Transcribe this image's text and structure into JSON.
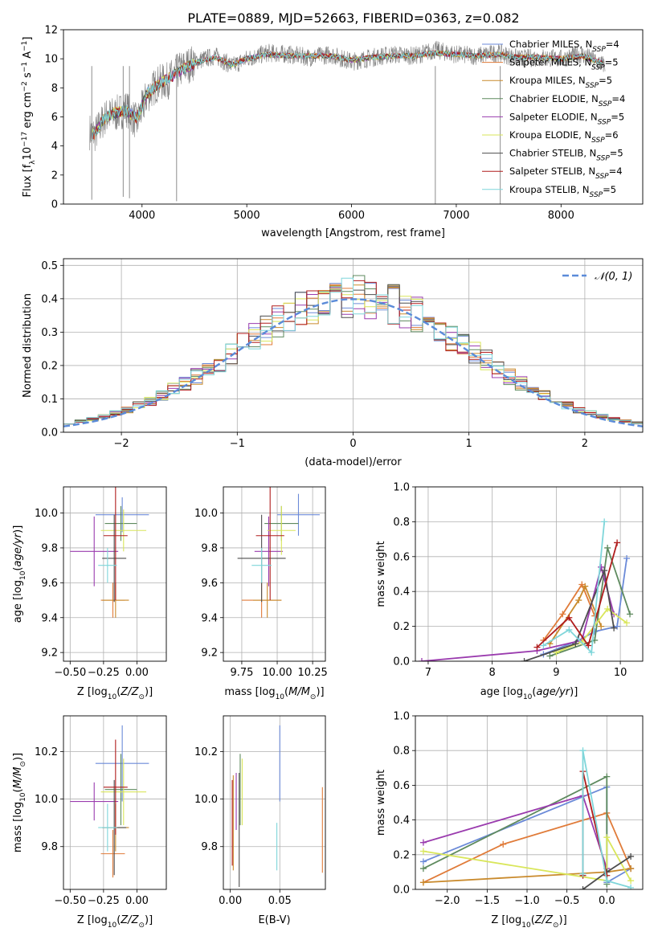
{
  "figure": {
    "title": "PLATE=0889, MJD=52663, FIBERID=0363, z=0.082"
  },
  "models": [
    {
      "name": "Chabrier MILES",
      "nssp": "4",
      "color": "#6B8AD8"
    },
    {
      "name": "Salpeter MILES",
      "nssp": "5",
      "color": "#E07B39"
    },
    {
      "name": "Kroupa MILES",
      "nssp": "5",
      "color": "#C98A2C"
    },
    {
      "name": "Chabrier ELODIE",
      "nssp": "4",
      "color": "#5E8A5E"
    },
    {
      "name": "Salpeter ELODIE",
      "nssp": "5",
      "color": "#9A3BAE"
    },
    {
      "name": "Kroupa ELODIE",
      "nssp": "6",
      "color": "#D9E65A"
    },
    {
      "name": "Chabrier STELIB",
      "nssp": "5",
      "color": "#4D4D4D"
    },
    {
      "name": "Salpeter STELIB",
      "nssp": "4",
      "color": "#B01C1C"
    },
    {
      "name": "Kroupa STELIB",
      "nssp": "5",
      "color": "#7FD6DA"
    }
  ],
  "chart_data": [
    {
      "id": "spectrum",
      "type": "line",
      "title": "PLATE=0889, MJD=52663, FIBERID=0363, z=0.082",
      "xlabel": "wavelength [Angstrom, rest frame]",
      "ylabel": "Flux [f",
      "ylabel_parts": [
        "Flux [f",
        "λ",
        "10",
        "−17",
        " erg cm",
        "−2",
        " s",
        "−1",
        " A",
        "−1",
        "]"
      ],
      "xlim": [
        3250,
        8780
      ],
      "ylim": [
        0,
        12
      ],
      "xticks": [
        4000,
        5000,
        6000,
        7000,
        8000
      ],
      "yticks": [
        0,
        2,
        4,
        6,
        8,
        10,
        12
      ],
      "grid": false,
      "legend": "right",
      "data_color": "#808080",
      "data_x": [
        3500,
        3550,
        3650,
        3750,
        3850,
        3950,
        4050,
        4150,
        4250,
        4350,
        4500,
        4700,
        4860,
        5000,
        5200,
        5400,
        5600,
        5800,
        6000,
        6200,
        6400,
        6600,
        6800,
        7000,
        7200,
        7400,
        7600,
        7800,
        8000,
        8200,
        8400
      ],
      "data_y": [
        5.0,
        4.8,
        6.0,
        6.2,
        6.6,
        5.6,
        7.5,
        8.3,
        8.5,
        9.2,
        9.8,
        10.2,
        9.5,
        10.0,
        10.4,
        10.3,
        10.1,
        10.3,
        9.8,
        10.1,
        10.3,
        10.2,
        10.6,
        10.3,
        10.2,
        10.4,
        10.0,
        10.1,
        10.0,
        10.3,
        9.6
      ],
      "model_y": [
        4.6,
        4.9,
        6.0,
        6.3,
        6.4,
        5.9,
        7.6,
        8.2,
        8.6,
        9.1,
        9.7,
        10.1,
        9.6,
        10.0,
        10.3,
        10.2,
        10.2,
        10.2,
        9.9,
        10.1,
        10.2,
        10.2,
        10.4,
        10.3,
        10.2,
        10.3,
        10.1,
        10.1,
        10.0,
        10.2,
        9.7
      ]
    },
    {
      "id": "residuals",
      "type": "step",
      "xlabel": "(data-model)/error",
      "ylabel": "Normed distribution",
      "xlim": [
        -2.5,
        2.5
      ],
      "ylim": [
        0,
        0.52
      ],
      "xticks": [
        -2,
        -1,
        0,
        1,
        2
      ],
      "yticks": [
        0.0,
        0.1,
        0.2,
        0.3,
        0.4,
        0.5
      ],
      "grid": true,
      "legend": "top-right",
      "normal_label": "𝒩(0, 1)",
      "normal_color": "#5B8BD9",
      "bin_width": 0.1,
      "bin_start": -2.5
    },
    {
      "id": "z-age",
      "type": "errorbar",
      "xlabel": "Z [log10(Z/Z⊙)]",
      "ylabel": "age [log10(age/yr)]",
      "xlim": [
        -0.55,
        0.22
      ],
      "ylim": [
        9.15,
        10.15
      ],
      "xticks": [
        -0.5,
        -0.25,
        0.0
      ],
      "yticks": [
        9.2,
        9.4,
        9.6,
        9.8,
        10.0
      ],
      "grid": true,
      "points": [
        {
          "x": -0.11,
          "xerr": 0.2,
          "y": 9.99,
          "yerr": 0.1
        },
        {
          "x": -0.18,
          "xerr": 0.09,
          "y": 9.5,
          "yerr": 0.1
        },
        {
          "x": -0.16,
          "xerr": 0.1,
          "y": 9.5,
          "yerr": 0.1
        },
        {
          "x": -0.12,
          "xerr": 0.12,
          "y": 9.94,
          "yerr": 0.1
        },
        {
          "x": -0.32,
          "xerr": 0.18,
          "y": 9.78,
          "yerr": 0.2
        },
        {
          "x": -0.1,
          "xerr": 0.17,
          "y": 9.9,
          "yerr": 0.12
        },
        {
          "x": -0.17,
          "xerr": 0.09,
          "y": 9.74,
          "yerr": 0.25
        },
        {
          "x": -0.16,
          "xerr": 0.09,
          "y": 9.87,
          "yerr": 0.37
        },
        {
          "x": -0.22,
          "xerr": 0.07,
          "y": 9.7,
          "yerr": 0.1
        }
      ]
    },
    {
      "id": "mass-age",
      "type": "errorbar",
      "xlabel": "mass [log10(M/M⊙)]",
      "ylabel": "",
      "xlim": [
        9.62,
        10.34
      ],
      "ylim": [
        9.15,
        10.15
      ],
      "xticks": [
        9.75,
        10.0,
        10.25
      ],
      "yticks": [
        9.2,
        9.4,
        9.6,
        9.8,
        10.0
      ],
      "grid": true,
      "points": [
        {
          "x": 10.15,
          "xerr": 0.15,
          "y": 9.99,
          "yerr": 0.12
        },
        {
          "x": 9.89,
          "xerr": 0.14,
          "y": 9.5,
          "yerr": 0.1
        },
        {
          "x": 9.93,
          "xerr": 0.1,
          "y": 9.5,
          "yerr": 0.1
        },
        {
          "x": 10.03,
          "xerr": 0.12,
          "y": 9.94,
          "yerr": 0.1
        },
        {
          "x": 9.94,
          "xerr": 0.1,
          "y": 9.78,
          "yerr": 0.2
        },
        {
          "x": 10.03,
          "xerr": 0.1,
          "y": 9.9,
          "yerr": 0.14
        },
        {
          "x": 9.89,
          "xerr": 0.17,
          "y": 9.74,
          "yerr": 0.25
        },
        {
          "x": 9.95,
          "xerr": 0.1,
          "y": 9.87,
          "yerr": 0.37
        },
        {
          "x": 9.89,
          "xerr": 0.07,
          "y": 9.7,
          "yerr": 0.1
        }
      ]
    },
    {
      "id": "age-weight",
      "type": "line",
      "xlabel": "age [log10(age/yr)]",
      "ylabel": "mass weight",
      "xlim": [
        6.8,
        10.35
      ],
      "ylim": [
        0,
        1.0
      ],
      "xticks": [
        7,
        8,
        9,
        10
      ],
      "yticks": [
        0.0,
        0.2,
        0.4,
        0.6,
        0.8,
        1.0
      ],
      "grid": true,
      "series": [
        {
          "x": [
            8.8,
            9.35,
            9.6,
            9.95,
            10.1
          ],
          "y": [
            0.04,
            0.12,
            0.17,
            0.2,
            0.59
          ]
        },
        {
          "x": [
            8.8,
            9.1,
            9.4,
            9.6
          ],
          "y": [
            0.12,
            0.27,
            0.44,
            0.26
          ]
        },
        {
          "x": [
            8.9,
            9.35,
            9.45,
            9.7
          ],
          "y": [
            0.1,
            0.35,
            0.43,
            0.2
          ]
        },
        {
          "x": [
            8.9,
            9.6,
            9.8,
            10.15
          ],
          "y": [
            0.03,
            0.12,
            0.65,
            0.27
          ]
        },
        {
          "x": [
            6.9,
            8.7,
            9.4,
            9.7,
            9.9
          ],
          "y": [
            0.0,
            0.06,
            0.12,
            0.54,
            0.27
          ]
        },
        {
          "x": [
            9.0,
            9.4,
            9.8,
            10.1
          ],
          "y": [
            0.05,
            0.11,
            0.3,
            0.22
          ]
        },
        {
          "x": [
            8.5,
            9.3,
            9.75,
            9.9
          ],
          "y": [
            0.0,
            0.1,
            0.52,
            0.19
          ]
        },
        {
          "x": [
            8.7,
            9.2,
            9.5,
            9.95
          ],
          "y": [
            0.08,
            0.25,
            0.09,
            0.68
          ]
        },
        {
          "x": [
            8.8,
            9.2,
            9.55,
            9.75
          ],
          "y": [
            0.09,
            0.18,
            0.05,
            0.8
          ]
        }
      ]
    },
    {
      "id": "z-mass",
      "type": "errorbar",
      "xlabel": "Z [log10(Z/Z⊙)]",
      "ylabel": "mass [log10(M/M⊙)]",
      "xlim": [
        -0.55,
        0.22
      ],
      "ylim": [
        9.62,
        10.35
      ],
      "xticks": [
        -0.5,
        -0.25,
        0.0
      ],
      "yticks": [
        9.8,
        10.0,
        10.2
      ],
      "grid": true,
      "points": [
        {
          "x": -0.11,
          "xerr": 0.2,
          "y": 10.15,
          "yerr": 0.16
        },
        {
          "x": -0.18,
          "xerr": 0.09,
          "y": 9.77,
          "yerr": 0.1
        },
        {
          "x": -0.16,
          "xerr": 0.1,
          "y": 9.88,
          "yerr": 0.1
        },
        {
          "x": -0.12,
          "xerr": 0.12,
          "y": 10.04,
          "yerr": 0.15
        },
        {
          "x": -0.32,
          "xerr": 0.18,
          "y": 9.99,
          "yerr": 0.08
        },
        {
          "x": -0.1,
          "xerr": 0.17,
          "y": 10.03,
          "yerr": 0.14
        },
        {
          "x": -0.17,
          "xerr": 0.09,
          "y": 9.88,
          "yerr": 0.2
        },
        {
          "x": -0.16,
          "xerr": 0.09,
          "y": 10.05,
          "yerr": 0.2
        },
        {
          "x": -0.22,
          "xerr": 0.07,
          "y": 9.88,
          "yerr": 0.1
        }
      ]
    },
    {
      "id": "ebv-mass",
      "type": "errorbar",
      "xlabel": "E(B-V)",
      "ylabel": "",
      "xlim": [
        -0.007,
        0.096
      ],
      "ylim": [
        9.62,
        10.35
      ],
      "xticks": [
        0.0,
        0.05
      ],
      "yticks": [
        9.8,
        10.0,
        10.2
      ],
      "grid": true,
      "points": [
        {
          "x": 0.05,
          "xerr": 0,
          "y": 10.15,
          "yerr": 0.16
        },
        {
          "x": 0.093,
          "xerr": 0,
          "y": 9.87,
          "yerr": 0.18
        },
        {
          "x": 0.003,
          "xerr": 0,
          "y": 9.9,
          "yerr": 0.2
        },
        {
          "x": 0.01,
          "xerr": 0,
          "y": 10.04,
          "yerr": 0.15
        },
        {
          "x": 0.006,
          "xerr": 0,
          "y": 9.99,
          "yerr": 0.12
        },
        {
          "x": 0.012,
          "xerr": 0,
          "y": 10.03,
          "yerr": 0.14
        },
        {
          "x": 0.009,
          "xerr": 0,
          "y": 9.87,
          "yerr": 0.24
        },
        {
          "x": 0.002,
          "xerr": 0,
          "y": 9.9,
          "yerr": 0.18
        },
        {
          "x": 0.047,
          "xerr": 0,
          "y": 9.8,
          "yerr": 0.1
        }
      ]
    },
    {
      "id": "z-weight",
      "type": "line",
      "xlabel": "Z [log10(Z/Z⊙)]",
      "ylabel": "mass weight",
      "xlim": [
        -2.4,
        0.45
      ],
      "ylim": [
        0,
        1.0
      ],
      "xticks": [
        -2.0,
        -1.5,
        -1.0,
        -0.5,
        0.0
      ],
      "yticks": [
        0.0,
        0.2,
        0.4,
        0.6,
        0.8,
        1.0
      ],
      "grid": true,
      "series": [
        {
          "x": [
            -2.3,
            0.0,
            0.0,
            0.3
          ],
          "y": [
            0.16,
            0.59,
            0.04,
            0.12
          ]
        },
        {
          "x": [
            -2.3,
            -1.3,
            0.0,
            0.3
          ],
          "y": [
            0.04,
            0.26,
            0.44,
            0.12
          ]
        },
        {
          "x": [
            -2.3,
            0.0,
            0.3
          ],
          "y": [
            0.04,
            0.1,
            0.12
          ]
        },
        {
          "x": [
            -2.3,
            0.0,
            0.0
          ],
          "y": [
            0.12,
            0.65,
            0.03
          ]
        },
        {
          "x": [
            -2.3,
            -0.3,
            0.0
          ],
          "y": [
            0.27,
            0.54,
            0.12
          ]
        },
        {
          "x": [
            -2.3,
            0.0,
            0.0,
            0.3
          ],
          "y": [
            0.22,
            0.05,
            0.3,
            0.05
          ]
        },
        {
          "x": [
            -0.3,
            0.0,
            0.3
          ],
          "y": [
            0.0,
            0.1,
            0.19
          ]
        },
        {
          "x": [
            -0.3,
            -0.3,
            0.0
          ],
          "y": [
            0.08,
            0.68,
            0.08
          ]
        },
        {
          "x": [
            -0.3,
            -0.3,
            0.0,
            0.3
          ],
          "y": [
            0.09,
            0.8,
            0.05,
            0.01
          ]
        }
      ]
    }
  ]
}
